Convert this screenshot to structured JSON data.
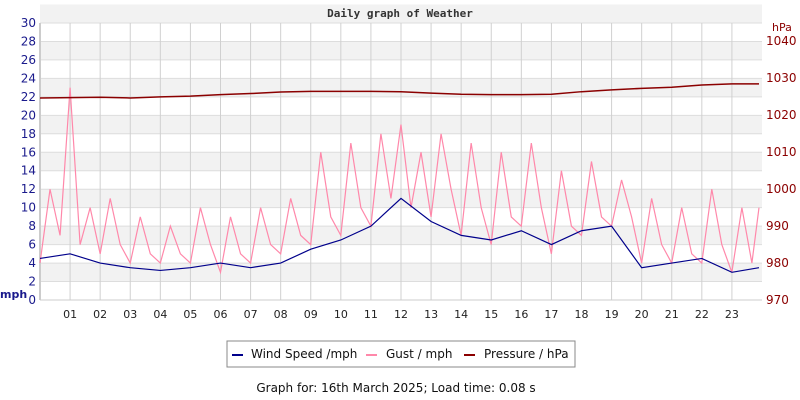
{
  "chart_data": {
    "type": "line",
    "title": "Daily graph of Weather",
    "ylabel_left": "mph",
    "ylabel_right": "hPa",
    "ylim_left": [
      0,
      30
    ],
    "ylim_right": [
      970,
      1045
    ],
    "yticks_left": [
      "0",
      "2",
      "4",
      "6",
      "8",
      "10",
      "12",
      "14",
      "16",
      "18",
      "20",
      "22",
      "24",
      "26",
      "28",
      "30"
    ],
    "yticks_right": [
      "970",
      "980",
      "990",
      "1000",
      "1010",
      "1020",
      "1030",
      "1040"
    ],
    "xlim": [
      0,
      24
    ],
    "xticks": [
      "01",
      "02",
      "03",
      "04",
      "05",
      "06",
      "07",
      "08",
      "09",
      "10",
      "11",
      "12",
      "13",
      "14",
      "15",
      "16",
      "17",
      "18",
      "19",
      "20",
      "21",
      "22",
      "23"
    ],
    "grid": true,
    "legend_position": "bottom",
    "colors": {
      "wind": "#00008b",
      "gust": "#ff88aa",
      "pressure": "#8b0000"
    },
    "series": [
      {
        "name": "Wind Speed /mph",
        "axis": "left",
        "x_hours": [
          0,
          1,
          2,
          3,
          4,
          5,
          6,
          7,
          8,
          9,
          10,
          11,
          12,
          13,
          14,
          15,
          16,
          17,
          18,
          19,
          20,
          21,
          22,
          23,
          23.9
        ],
        "values": [
          4.5,
          5,
          4,
          3.5,
          3.2,
          3.5,
          4,
          3.5,
          4,
          5.5,
          6.5,
          8,
          11,
          8.5,
          7,
          6.5,
          7.5,
          6,
          7.5,
          8,
          3.5,
          4,
          4.5,
          3,
          3.5
        ]
      },
      {
        "name": "Gust / mph",
        "axis": "left",
        "step_hours": 0.3333,
        "values": [
          4,
          12,
          7,
          23,
          6,
          10,
          5,
          11,
          6,
          4,
          9,
          5,
          4,
          8,
          5,
          4,
          10,
          6,
          3,
          9,
          5,
          4,
          10,
          6,
          5,
          11,
          7,
          6,
          16,
          9,
          7,
          17,
          10,
          8,
          18,
          11,
          19,
          10,
          16,
          9,
          18,
          12,
          7,
          17,
          10,
          6,
          16,
          9,
          8,
          17,
          10,
          5,
          14,
          8,
          7,
          15,
          9,
          8,
          13,
          9,
          4,
          11,
          6,
          4,
          10,
          5,
          4,
          12,
          6,
          3,
          10,
          4,
          10
        ]
      },
      {
        "name": "Pressure / hPa",
        "axis": "right",
        "x_hours": [
          0,
          1,
          2,
          3,
          4,
          5,
          6,
          7,
          8,
          9,
          10,
          11,
          12,
          13,
          14,
          15,
          16,
          17,
          18,
          19,
          20,
          21,
          22,
          23,
          23.9
        ],
        "values": [
          1024.6,
          1024.7,
          1024.8,
          1024.6,
          1024.9,
          1025.1,
          1025.5,
          1025.8,
          1026.2,
          1026.4,
          1026.4,
          1026.4,
          1026.3,
          1025.9,
          1025.6,
          1025.5,
          1025.5,
          1025.6,
          1026.3,
          1026.8,
          1027.2,
          1027.5,
          1028.1,
          1028.4,
          1028.4
        ]
      }
    ]
  },
  "footer": {
    "graph_for_label": "Graph for: 16th March 2025; Load time: 0.08 s"
  }
}
